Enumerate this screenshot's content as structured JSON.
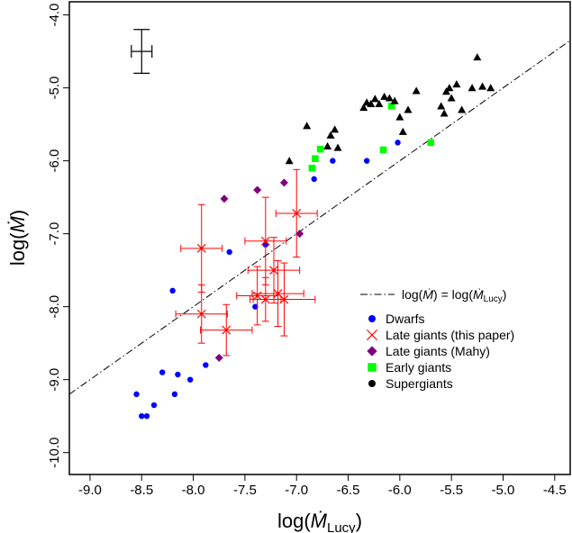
{
  "chart_data": {
    "type": "scatter",
    "xlabel": "log(Ṁ_Lucy)",
    "ylabel": "log(Ṁ)",
    "xlim": [
      -9.2,
      -4.35
    ],
    "ylim": [
      -10.3,
      -3.82
    ],
    "ylim_note": "reversed",
    "grid": false,
    "legend_position": "bottom-right",
    "x_ticks": [
      "-9.0",
      "-8.5",
      "-8.0",
      "-7.5",
      "-7.0",
      "-6.5",
      "-6.0",
      "-5.5",
      "-5.0",
      "-4.5"
    ],
    "y_ticks": [
      "-4.0",
      "-5.0",
      "-6.0",
      "-7.0",
      "-8.0",
      "-9.0",
      "-10.0"
    ],
    "reference_line": {
      "label": "log(Ṁ) = log(Ṁ_Lucy)",
      "style": "dot-dash",
      "x": [
        -9.2,
        -4.35
      ],
      "y": [
        -9.2,
        -4.35
      ]
    },
    "typical_error_bar": {
      "x": -8.5,
      "y": -4.5,
      "x_err": 0.1,
      "y_err": 0.3
    },
    "series": [
      {
        "name": "Dwarfs",
        "marker": "circle",
        "color": "#0000ff",
        "points": [
          [
            -8.55,
            -9.2
          ],
          [
            -8.5,
            -9.5
          ],
          [
            -8.45,
            -9.5
          ],
          [
            -8.38,
            -9.35
          ],
          [
            -8.3,
            -8.9
          ],
          [
            -8.18,
            -9.2
          ],
          [
            -8.15,
            -8.93
          ],
          [
            -8.03,
            -9.0
          ],
          [
            -7.88,
            -8.8
          ],
          [
            -8.2,
            -7.78
          ],
          [
            -7.65,
            -7.25
          ],
          [
            -7.4,
            -8.0
          ],
          [
            -7.3,
            -7.15
          ],
          [
            -6.83,
            -6.25
          ],
          [
            -6.65,
            -6.0
          ],
          [
            -6.32,
            -6.0
          ],
          [
            -6.02,
            -5.75
          ]
        ]
      },
      {
        "name": "Late giants (this paper)",
        "marker": "x",
        "color": "#ff0000",
        "points": [
          {
            "x": -7.92,
            "y": -7.2,
            "xerr": 0.2,
            "yerr": 0.6
          },
          {
            "x": -7.92,
            "y": -8.1,
            "xerr": 0.25,
            "yerr": 0.4
          },
          {
            "x": -7.68,
            "y": -8.32,
            "xerr": 0.25,
            "yerr": 0.35
          },
          {
            "x": -7.3,
            "y": -7.1,
            "xerr": 0.2,
            "yerr": 0.6
          },
          {
            "x": -7.38,
            "y": -7.85,
            "xerr": 0.2,
            "yerr": 0.4
          },
          {
            "x": -7.22,
            "y": -7.5,
            "xerr": 0.25,
            "yerr": 0.45
          },
          {
            "x": -7.18,
            "y": -7.82,
            "xerr": 0.25,
            "yerr": 0.45
          },
          {
            "x": -7.12,
            "y": -7.9,
            "xerr": 0.3,
            "yerr": 0.5
          },
          {
            "x": -7.0,
            "y": -6.72,
            "xerr": 0.2,
            "yerr": 0.6
          },
          {
            "x": -7.3,
            "y": -7.9,
            "xerr": 0.15,
            "yerr": 0.3
          }
        ]
      },
      {
        "name": "Late giants (Mahy)",
        "marker": "diamond",
        "color": "#800080",
        "points": [
          [
            -7.7,
            -6.52
          ],
          [
            -7.38,
            -6.4
          ],
          [
            -7.12,
            -6.3
          ],
          [
            -6.97,
            -7.0
          ],
          [
            -7.75,
            -8.7
          ]
        ]
      },
      {
        "name": "Early giants",
        "marker": "square",
        "color": "#00ff00",
        "points": [
          [
            -6.85,
            -6.1
          ],
          [
            -6.82,
            -5.97
          ],
          [
            -6.77,
            -5.84
          ],
          [
            -6.16,
            -5.85
          ],
          [
            -6.08,
            -5.25
          ],
          [
            -5.7,
            -5.75
          ]
        ]
      },
      {
        "name": "Supergiants",
        "marker": "circle",
        "plot_marker": "triangle",
        "color": "#000000",
        "points": [
          [
            -7.07,
            -6.0
          ],
          [
            -6.9,
            -5.52
          ],
          [
            -6.7,
            -5.8
          ],
          [
            -6.67,
            -5.65
          ],
          [
            -6.63,
            -5.57
          ],
          [
            -6.6,
            -5.82
          ],
          [
            -6.35,
            -5.27
          ],
          [
            -6.32,
            -5.2
          ],
          [
            -6.28,
            -5.22
          ],
          [
            -6.24,
            -5.15
          ],
          [
            -6.2,
            -5.22
          ],
          [
            -6.15,
            -5.12
          ],
          [
            -6.1,
            -5.14
          ],
          [
            -6.05,
            -5.18
          ],
          [
            -6.0,
            -5.4
          ],
          [
            -5.97,
            -5.6
          ],
          [
            -5.92,
            -5.3
          ],
          [
            -5.84,
            -5.04
          ],
          [
            -5.6,
            -5.25
          ],
          [
            -5.55,
            -5.05
          ],
          [
            -5.52,
            -5.0
          ],
          [
            -5.5,
            -5.14
          ],
          [
            -5.45,
            -4.95
          ],
          [
            -5.4,
            -5.3
          ],
          [
            -5.3,
            -5.0
          ],
          [
            -5.25,
            -4.58
          ],
          [
            -5.2,
            -4.98
          ],
          [
            -5.12,
            -5.0
          ],
          [
            -5.57,
            -5.35
          ]
        ]
      }
    ]
  }
}
